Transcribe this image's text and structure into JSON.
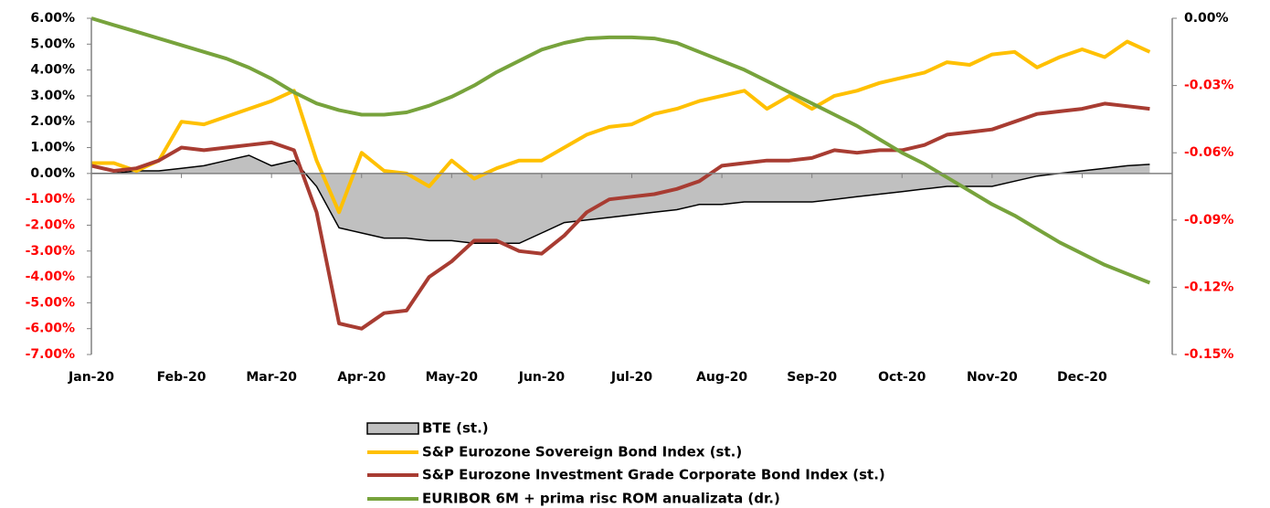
{
  "chart_data": {
    "type": "line",
    "x": [
      0,
      0.25,
      0.5,
      0.75,
      1,
      1.25,
      1.5,
      1.75,
      2,
      2.25,
      2.5,
      2.75,
      3,
      3.25,
      3.5,
      3.75,
      4,
      4.25,
      4.5,
      4.75,
      5,
      5.25,
      5.5,
      5.75,
      6,
      6.25,
      6.5,
      6.75,
      7,
      7.25,
      7.5,
      7.75,
      8,
      8.25,
      8.5,
      8.75,
      9,
      9.25,
      9.5,
      9.75,
      10,
      10.25,
      10.5,
      10.75,
      11,
      11.25,
      11.5,
      11.75
    ],
    "xlim": [
      0,
      12
    ],
    "xticks": [
      {
        "value": 0,
        "label": "Jan-20"
      },
      {
        "value": 1,
        "label": "Feb-20"
      },
      {
        "value": 2,
        "label": "Mar-20"
      },
      {
        "value": 3,
        "label": "Apr-20"
      },
      {
        "value": 4,
        "label": "May-20"
      },
      {
        "value": 5,
        "label": "Jun-20"
      },
      {
        "value": 6,
        "label": "Jul-20"
      },
      {
        "value": 7,
        "label": "Aug-20"
      },
      {
        "value": 8,
        "label": "Sep-20"
      },
      {
        "value": 9,
        "label": "Oct-20"
      },
      {
        "value": 10,
        "label": "Nov-20"
      },
      {
        "value": 11,
        "label": "Dec-20"
      }
    ],
    "ylim": [
      -7,
      6
    ],
    "yticks": [
      {
        "value": 6,
        "label": "6.00%"
      },
      {
        "value": 5,
        "label": "5.00%"
      },
      {
        "value": 4,
        "label": "4.00%"
      },
      {
        "value": 3,
        "label": "3.00%"
      },
      {
        "value": 2,
        "label": "2.00%"
      },
      {
        "value": 1,
        "label": "1.00%"
      },
      {
        "value": 0,
        "label": "0.00%"
      },
      {
        "value": -1,
        "label": "-1.00%"
      },
      {
        "value": -2,
        "label": "-2.00%"
      },
      {
        "value": -3,
        "label": "-3.00%"
      },
      {
        "value": -4,
        "label": "-4.00%"
      },
      {
        "value": -5,
        "label": "-5.00%"
      },
      {
        "value": -6,
        "label": "-6.00%"
      },
      {
        "value": -7,
        "label": "-7.00%"
      }
    ],
    "y2lim": [
      -0.15,
      0
    ],
    "y2ticks": [
      {
        "value": 0,
        "label": "0.00%"
      },
      {
        "value": -0.03,
        "label": "-0.03%"
      },
      {
        "value": -0.06,
        "label": "-0.06%"
      },
      {
        "value": -0.09,
        "label": "-0.09%"
      },
      {
        "value": -0.12,
        "label": "-0.12%"
      },
      {
        "value": -0.15,
        "label": "-0.15%"
      }
    ],
    "negative_label_color": "#ff0000",
    "series": [
      {
        "name": "BTE (st.)",
        "style": "area",
        "color": "#c0c0c0",
        "edgecolor": "#000000",
        "values": [
          0,
          0,
          0.1,
          0.1,
          0.2,
          0.3,
          0.5,
          0.7,
          0.3,
          0.5,
          -0.5,
          -2.1,
          -2.3,
          -2.5,
          -2.5,
          -2.6,
          -2.6,
          -2.7,
          -2.7,
          -2.7,
          -2.3,
          -1.9,
          -1.8,
          -1.7,
          -1.6,
          -1.5,
          -1.4,
          -1.2,
          -1.2,
          -1.1,
          -1.1,
          -1.1,
          -1.1,
          -1,
          -0.9,
          -0.8,
          -0.7,
          -0.6,
          -0.5,
          -0.5,
          -0.5,
          -0.3,
          -0.1,
          0,
          0.1,
          0.2,
          0.3,
          0.35
        ]
      },
      {
        "name": "S&P Eurozone Sovereign Bond Index (st.)",
        "color": "#ffc000",
        "values": [
          0.4,
          0.4,
          0.1,
          0.5,
          2,
          1.9,
          2.2,
          2.5,
          2.8,
          3.2,
          0.5,
          -1.5,
          0.8,
          0.1,
          0,
          -0.5,
          0.5,
          -0.2,
          0.2,
          0.5,
          0.5,
          1,
          1.5,
          1.8,
          1.9,
          2.3,
          2.5,
          2.8,
          3,
          3.2,
          2.5,
          3,
          2.5,
          3,
          3.2,
          3.5,
          3.7,
          3.9,
          4.3,
          4.2,
          4.6,
          4.7,
          4.1,
          4.5,
          4.8,
          4.5,
          5.1,
          4.7
        ]
      },
      {
        "name": "S&P Eurozone Investment Grade Corporate Bond Index (st.)",
        "color": "#a83c32",
        "values": [
          0.3,
          0.1,
          0.2,
          0.5,
          1,
          0.9,
          1,
          1.1,
          1.2,
          0.9,
          -1.5,
          -5.8,
          -6,
          -5.4,
          -5.3,
          -4,
          -3.4,
          -2.6,
          -2.6,
          -3,
          -3.1,
          -2.4,
          -1.5,
          -1,
          -0.9,
          -0.8,
          -0.6,
          -0.3,
          0.3,
          0.4,
          0.5,
          0.5,
          0.6,
          0.9,
          0.8,
          0.9,
          0.9,
          1.1,
          1.5,
          1.6,
          1.7,
          2,
          2.3,
          2.4,
          2.5,
          2.7,
          2.6,
          2.5
        ]
      },
      {
        "name": "EURIBOR 6M + prima risc ROM anualizata (dr.)",
        "color": "#77a33c",
        "axis": "y2",
        "values": [
          0,
          -0.003,
          -0.006,
          -0.009,
          -0.012,
          -0.015,
          -0.018,
          -0.022,
          -0.027,
          -0.033,
          -0.038,
          -0.041,
          -0.043,
          -0.043,
          -0.042,
          -0.039,
          -0.035,
          -0.03,
          -0.024,
          -0.019,
          -0.014,
          -0.011,
          -0.009,
          -0.0085,
          -0.0085,
          -0.009,
          -0.011,
          -0.015,
          -0.019,
          -0.023,
          -0.028,
          -0.033,
          -0.038,
          -0.043,
          -0.048,
          -0.054,
          -0.06,
          -0.065,
          -0.071,
          -0.077,
          -0.083,
          -0.088,
          -0.094,
          -0.1,
          -0.105,
          -0.11,
          -0.114,
          -0.118
        ]
      }
    ]
  }
}
